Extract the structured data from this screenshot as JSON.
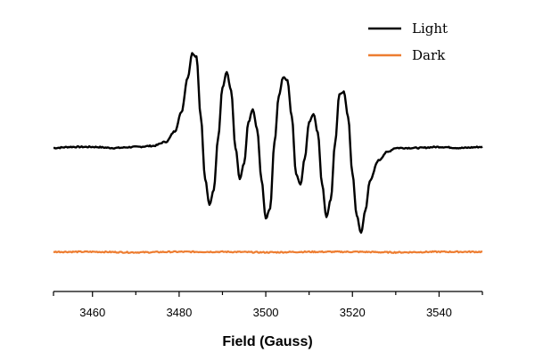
{
  "chart_data": {
    "type": "line",
    "title": "",
    "xlabel": "Field (Gauss)",
    "ylabel": "",
    "xlim": [
      3451,
      3550
    ],
    "ylim": [
      -1.15,
      1.15
    ],
    "xticks": [
      3460,
      3480,
      3500,
      3520,
      3540
    ],
    "yaxis_visible": false,
    "grid": false,
    "legend_position": "top-right",
    "series": [
      {
        "name": "Light",
        "color": "#000000",
        "baseline": 0.0,
        "points": [
          [
            3451,
            0.0
          ],
          [
            3455,
            0.01
          ],
          [
            3460,
            0.01
          ],
          [
            3465,
            0.0
          ],
          [
            3470,
            0.01
          ],
          [
            3474,
            0.02
          ],
          [
            3477,
            0.06
          ],
          [
            3479,
            0.16
          ],
          [
            3480.5,
            0.34
          ],
          [
            3482,
            0.68
          ],
          [
            3483,
            0.91
          ],
          [
            3484,
            0.88
          ],
          [
            3485,
            0.3
          ],
          [
            3486,
            -0.3
          ],
          [
            3487,
            -0.55
          ],
          [
            3488,
            -0.4
          ],
          [
            3489,
            0.1
          ],
          [
            3490,
            0.58
          ],
          [
            3491,
            0.73
          ],
          [
            3492,
            0.55
          ],
          [
            3493,
            0.0
          ],
          [
            3494,
            -0.3
          ],
          [
            3495,
            -0.15
          ],
          [
            3496,
            0.25
          ],
          [
            3497,
            0.37
          ],
          [
            3498,
            0.18
          ],
          [
            3499,
            -0.3
          ],
          [
            3500,
            -0.68
          ],
          [
            3501,
            -0.58
          ],
          [
            3502,
            0.05
          ],
          [
            3503,
            0.5
          ],
          [
            3504,
            0.68
          ],
          [
            3505,
            0.65
          ],
          [
            3506,
            0.3
          ],
          [
            3507,
            -0.25
          ],
          [
            3508,
            -0.35
          ],
          [
            3509,
            -0.1
          ],
          [
            3510,
            0.25
          ],
          [
            3511,
            0.33
          ],
          [
            3512,
            0.15
          ],
          [
            3513,
            -0.35
          ],
          [
            3514,
            -0.67
          ],
          [
            3515,
            -0.5
          ],
          [
            3516,
            0.05
          ],
          [
            3517,
            0.52
          ],
          [
            3518,
            0.54
          ],
          [
            3519,
            0.3
          ],
          [
            3520,
            -0.25
          ],
          [
            3521,
            -0.65
          ],
          [
            3522,
            -0.82
          ],
          [
            3523,
            -0.6
          ],
          [
            3524,
            -0.32
          ],
          [
            3526,
            -0.12
          ],
          [
            3528,
            -0.04
          ],
          [
            3530,
            0.0
          ],
          [
            3535,
            0.0
          ],
          [
            3540,
            0.01
          ],
          [
            3545,
            0.0
          ],
          [
            3550,
            0.01
          ]
        ]
      },
      {
        "name": "Dark",
        "color": "#ed7d31",
        "baseline": -1.0,
        "points": [
          [
            3451,
            -1.0
          ],
          [
            3460,
            -1.0
          ],
          [
            3470,
            -1.005
          ],
          [
            3480,
            -1.0
          ],
          [
            3490,
            -1.0
          ],
          [
            3500,
            -1.005
          ],
          [
            3510,
            -1.0
          ],
          [
            3520,
            -1.0
          ],
          [
            3530,
            -1.005
          ],
          [
            3540,
            -1.0
          ],
          [
            3550,
            -1.0
          ]
        ]
      }
    ]
  }
}
